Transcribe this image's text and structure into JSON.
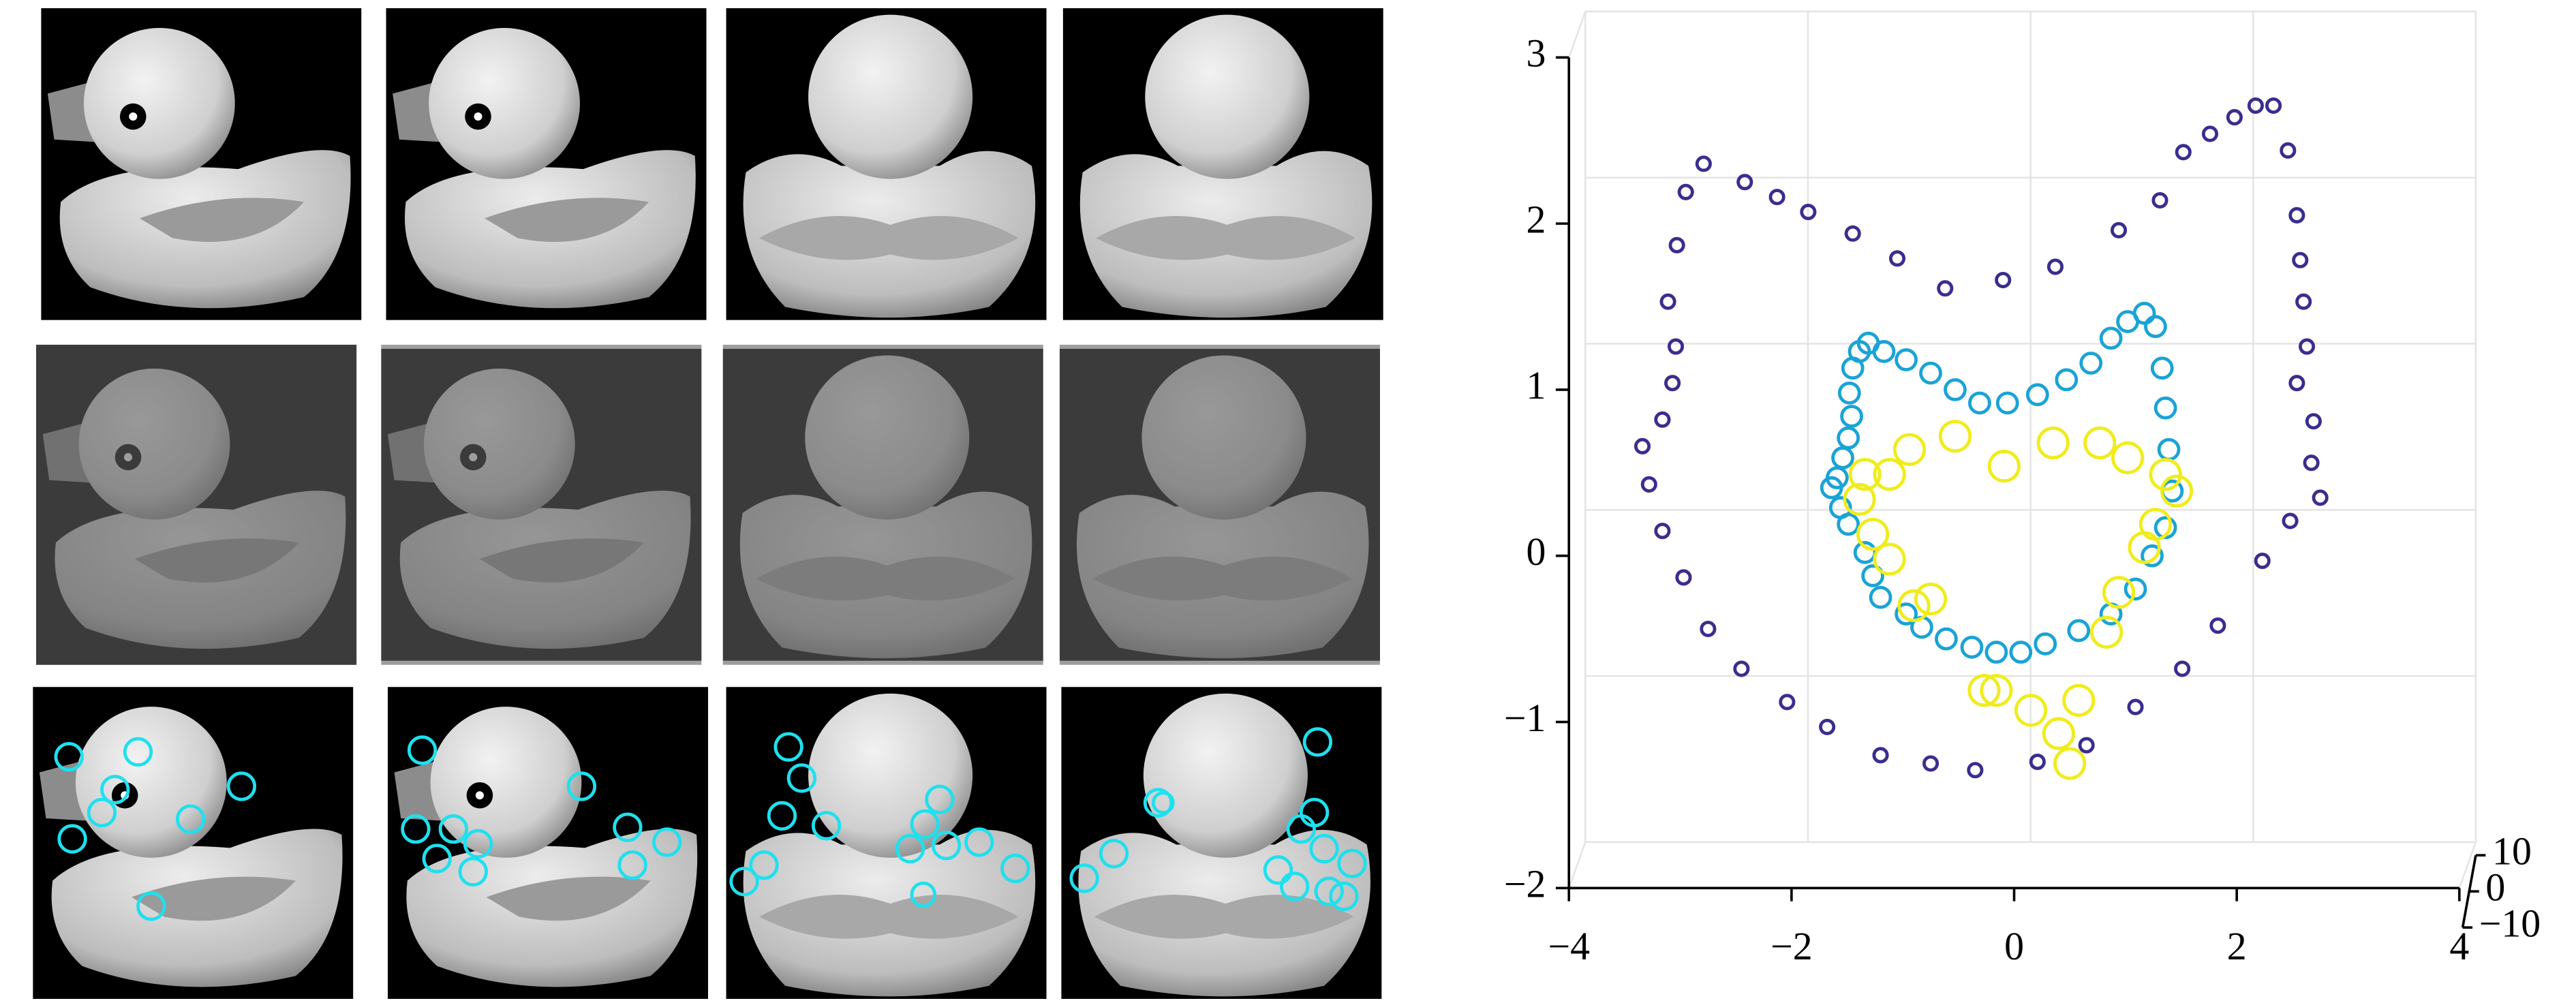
{
  "chart_data": {
    "type": "scatter3d",
    "xlim": [
      -4,
      4
    ],
    "xticks": [
      {
        "value": -4,
        "label": "−4"
      },
      {
        "value": -2,
        "label": "−2"
      },
      0,
      2,
      4
    ],
    "ylim": [
      -2,
      3
    ],
    "yticks": [
      {
        "value": -2,
        "label": "−2"
      },
      {
        "value": -1,
        "label": "−1"
      },
      0,
      1,
      2,
      3
    ],
    "zlim": [
      -10,
      10
    ],
    "zticks": [
      {
        "value": -10,
        "label": "−10"
      },
      0,
      10
    ],
    "grid": true,
    "series": [
      {
        "color": "#3a2d8f",
        "size": 4,
        "x": [
          -3.34,
          -3.16,
          -3.07,
          -3.04,
          -3.11,
          -3.03,
          -2.95,
          -2.79,
          -2.42,
          -2.13,
          -1.85,
          -1.45,
          -1.05,
          -0.62,
          -0.1,
          0.37,
          0.94,
          1.31,
          1.52,
          1.76,
          1.98,
          2.17,
          2.33,
          2.46,
          2.54,
          2.57,
          2.6,
          2.63,
          2.54,
          2.69,
          2.67,
          2.75,
          2.48,
          2.23,
          1.83,
          1.51,
          1.09,
          0.65,
          0.21,
          -0.35,
          -0.75,
          -1.2,
          -1.68,
          -2.04,
          -2.45,
          -2.75,
          -2.97,
          -3.16,
          -3.28
        ],
        "y": [
          0.66,
          0.82,
          1.04,
          1.26,
          1.53,
          1.87,
          2.19,
          2.36,
          2.25,
          2.16,
          2.07,
          1.94,
          1.79,
          1.61,
          1.66,
          1.74,
          1.96,
          2.14,
          2.43,
          2.54,
          2.64,
          2.71,
          2.71,
          2.44,
          2.05,
          1.78,
          1.53,
          1.26,
          1.04,
          0.81,
          0.56,
          0.35,
          0.21,
          -0.03,
          -0.42,
          -0.68,
          -0.91,
          -1.14,
          -1.24,
          -1.29,
          -1.25,
          -1.2,
          -1.03,
          -0.88,
          -0.68,
          -0.44,
          -0.13,
          0.15,
          0.43
        ]
      },
      {
        "color": "#1aa3d6",
        "size": 6,
        "x": [
          -1.64,
          -1.59,
          -1.54,
          -1.49,
          -1.46,
          -1.48,
          -1.45,
          -1.39,
          -1.31,
          -1.17,
          -0.97,
          -0.75,
          -0.53,
          -0.31,
          -0.06,
          0.21,
          0.47,
          0.69,
          0.87,
          1.02,
          1.17,
          1.27,
          1.33,
          1.36,
          1.39,
          1.42,
          1.36,
          1.24,
          1.09,
          0.87,
          0.58,
          0.28,
          0.06,
          -0.16,
          -0.38,
          -0.61,
          -0.83,
          -0.97,
          -1.2,
          -1.27,
          -1.34,
          -1.49,
          -1.56
        ],
        "y": [
          0.41,
          0.47,
          0.59,
          0.71,
          0.84,
          0.98,
          1.13,
          1.23,
          1.28,
          1.23,
          1.18,
          1.1,
          1.0,
          0.92,
          0.92,
          0.97,
          1.06,
          1.16,
          1.31,
          1.41,
          1.46,
          1.38,
          1.13,
          0.89,
          0.64,
          0.39,
          0.17,
          0,
          -0.2,
          -0.35,
          -0.45,
          -0.53,
          -0.58,
          -0.58,
          -0.55,
          -0.5,
          -0.43,
          -0.35,
          -0.25,
          -0.12,
          0.02,
          0.19,
          0.29
        ]
      },
      {
        "color": "#f0ec1c",
        "size": 9,
        "x": [
          -1.34,
          -1.12,
          -0.94,
          -0.53,
          -0.09,
          0.35,
          0.77,
          1.02,
          1.36,
          1.46,
          1.27,
          1.17,
          0.94,
          0.83,
          0.58,
          0.4,
          0.5,
          0.15,
          -0.27,
          -0.16,
          -0.9,
          -0.75,
          -1.12,
          -1.27,
          -1.39
        ],
        "y": [
          0.49,
          0.49,
          0.64,
          0.72,
          0.54,
          0.68,
          0.68,
          0.59,
          0.49,
          0.39,
          0.19,
          0.05,
          -0.22,
          -0.46,
          -0.87,
          -1.07,
          -1.25,
          -0.93,
          -0.81,
          -0.81,
          -0.3,
          -0.26,
          -0.02,
          0.13,
          0.34
        ]
      }
    ]
  }
}
